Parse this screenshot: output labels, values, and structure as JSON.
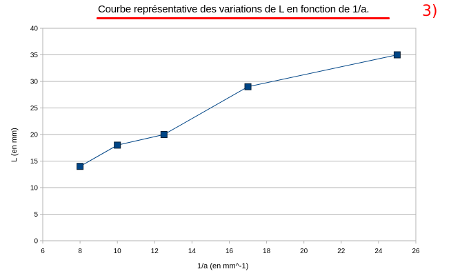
{
  "chart_data": {
    "type": "line",
    "title": "Courbe représentative des variations de L en fonction de 1/a.",
    "xlabel": "1/a (en mm^-1)",
    "ylabel": "L (en mm)",
    "xlim": [
      6,
      26
    ],
    "ylim": [
      0,
      40
    ],
    "xticks": [
      "6",
      "8",
      "10",
      "12",
      "14",
      "16",
      "18",
      "20",
      "22",
      "24",
      "26"
    ],
    "yticks": [
      "0",
      "5",
      "10",
      "15",
      "20",
      "25",
      "30",
      "35",
      "40"
    ],
    "grid": "horizontal",
    "legend": "none",
    "series": [
      {
        "x": [
          8,
          10,
          12.5,
          17,
          25
        ],
        "y": [
          14,
          18,
          20,
          29,
          35
        ],
        "color": "#004586",
        "marker": "square"
      }
    ]
  },
  "annotation": {
    "question_number": "3)",
    "color": "#ff0000"
  }
}
